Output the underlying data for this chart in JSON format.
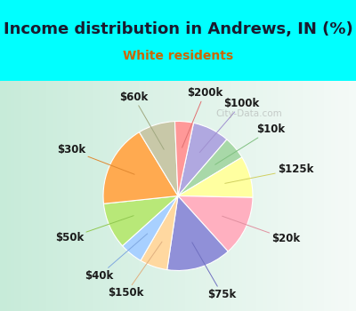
{
  "title": "Income distribution in Andrews, IN (%)",
  "subtitle": "White residents",
  "bg_cyan": "#00ffff",
  "bg_chart_gradient_start": "#c8e8d8",
  "bg_chart_gradient_end": "#f0faf5",
  "watermark": "City-Data.com",
  "title_fontsize": 13,
  "subtitle_fontsize": 10,
  "subtitle_color": "#cc6600",
  "label_fontsize": 8.5,
  "labels_order": [
    "$100k",
    "$10k",
    "$125k",
    "$20k",
    "$75k",
    "$150k",
    "$40k",
    "$50k",
    "$30k",
    "$60k",
    "$200k"
  ],
  "values": [
    8,
    5,
    9,
    13,
    14,
    6,
    5,
    10,
    18,
    8,
    4
  ],
  "colors": [
    "#b0a8e0",
    "#a8d8a8",
    "#ffffa0",
    "#ffb0c0",
    "#9090d8",
    "#ffd8a0",
    "#a8d0ff",
    "#b8e878",
    "#ffaa50",
    "#c8c8a8",
    "#ff9898"
  ],
  "line_colors": [
    "#a090d0",
    "#80c080",
    "#d0d060",
    "#e090a0",
    "#7070c0",
    "#e0b080",
    "#80a8e0",
    "#90c850",
    "#e08830",
    "#a0a880",
    "#e07070"
  ],
  "startangle": 78
}
